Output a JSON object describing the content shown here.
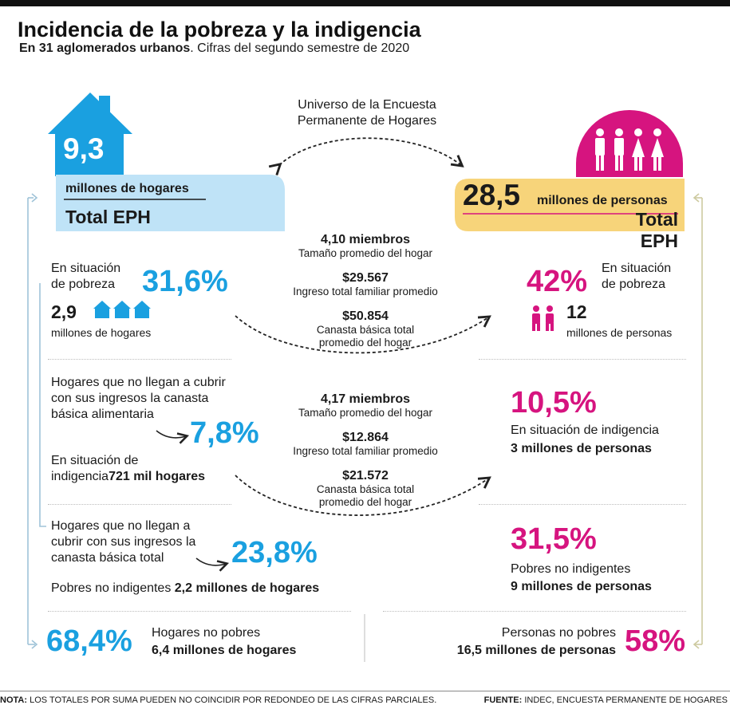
{
  "header": {
    "title": "Incidencia de la pobreza y la indigencia",
    "subtitle_bold": "En 31 aglomerados urbanos",
    "subtitle_rest": ". Cifras del segundo semestre de 2020"
  },
  "universe": {
    "line1": "Universo de la Encuesta",
    "line2": "Permanente de Hogares"
  },
  "hogares_total": {
    "value": "9,3",
    "unit": "millones de hogares",
    "label": "Total EPH"
  },
  "personas_total": {
    "value": "28,5",
    "unit": "millones de personas",
    "label": "Total EPH"
  },
  "pobreza": {
    "hogares_label1": "En situación",
    "hogares_label2": "de pobreza",
    "hogares_pct": "31,6%",
    "hogares_count": "2,9",
    "hogares_unit": "millones de hogares",
    "personas_pct": "42%",
    "personas_label1": "En situación",
    "personas_label2": "de pobreza",
    "personas_count": "12",
    "personas_unit": "millones de personas",
    "miembros": "4,10 miembros",
    "miembros_label": "Tamaño promedio del hogar",
    "ingreso": "$29.567",
    "ingreso_label": "Ingreso total familiar promedio",
    "canasta": "$50.854",
    "canasta_label1": "Canasta básica total",
    "canasta_label2": "promedio del hogar"
  },
  "indigencia": {
    "hogares_text1": "Hogares que no llegan a cubrir",
    "hogares_text2": "con sus ingresos la canasta",
    "hogares_text3": "básica alimentaria",
    "hogares_pct": "7,8%",
    "situacion_label1": "En situación de",
    "situacion_label2": "indigencia",
    "situacion_count": "721 mil hogares",
    "personas_pct": "10,5%",
    "personas_label": "En situación de indigencia",
    "personas_count": "3 millones de personas",
    "miembros": "4,17 miembros",
    "miembros_label": "Tamaño promedio del hogar",
    "ingreso": "$12.864",
    "ingreso_label": "Ingreso total familiar promedio",
    "canasta": "$21.572",
    "canasta_label1": "Canasta básica total",
    "canasta_label2": "promedio del hogar"
  },
  "canasta_total": {
    "text1": "Hogares que no llegan a",
    "text2": "cubrir con sus ingresos la",
    "text3": "canasta básica total",
    "pct": "23,8%",
    "pobres_label": "Pobres no indigentes",
    "pobres_count": "2,2 millones de hogares",
    "personas_pct": "31,5%",
    "personas_label": "Pobres no indigentes",
    "personas_count": "9 millones de personas"
  },
  "no_pobres": {
    "hogares_pct": "68,4%",
    "hogares_label": "Hogares no pobres",
    "hogares_count": "6,4 millones de hogares",
    "personas_label": "Personas no pobres",
    "personas_count": "16,5 millones de personas",
    "personas_pct": "58%"
  },
  "footer": {
    "nota_bold": "NOTA:",
    "nota_text": "LOS TOTALES POR SUMA PUEDEN NO COINCIDIR POR REDONDEO DE LAS CIFRAS PARCIALES.",
    "fuente_bold": "FUENTE:",
    "fuente_text": "INDEC, ENCUESTA PERMANENTE DE HOGARES"
  },
  "colors": {
    "blue": "#1aa0e0",
    "pink": "#d6147f",
    "light_blue": "#bfe3f7",
    "yellow": "#f7d47a"
  }
}
